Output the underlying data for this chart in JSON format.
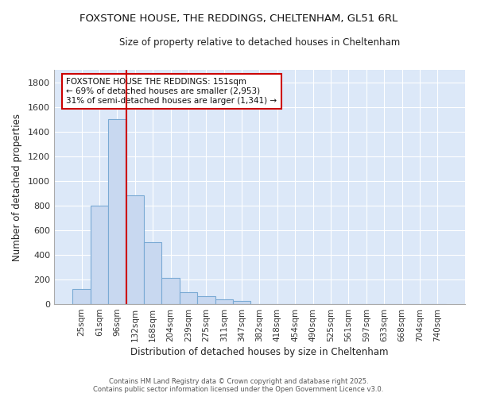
{
  "title": "FOXSTONE HOUSE, THE REDDINGS, CHELTENHAM, GL51 6RL",
  "subtitle": "Size of property relative to detached houses in Cheltenham",
  "xlabel": "Distribution of detached houses by size in Cheltenham",
  "ylabel": "Number of detached properties",
  "bar_color": "#c8d8f0",
  "bar_edge_color": "#7aaad4",
  "plot_bg_color": "#dce8f8",
  "fig_bg_color": "#ffffff",
  "grid_color": "#ffffff",
  "categories": [
    "25sqm",
    "61sqm",
    "96sqm",
    "132sqm",
    "168sqm",
    "204sqm",
    "239sqm",
    "275sqm",
    "311sqm",
    "347sqm",
    "382sqm",
    "418sqm",
    "454sqm",
    "490sqm",
    "525sqm",
    "561sqm",
    "597sqm",
    "633sqm",
    "668sqm",
    "704sqm",
    "740sqm"
  ],
  "values": [
    120,
    800,
    1500,
    880,
    500,
    210,
    100,
    65,
    40,
    25,
    0,
    0,
    0,
    0,
    0,
    0,
    0,
    0,
    0,
    0,
    0
  ],
  "vline_x": 2.5,
  "vline_color": "#cc0000",
  "annotation_line1": "FOXSTONE HOUSE THE REDDINGS: 151sqm",
  "annotation_line2": "← 69% of detached houses are smaller (2,953)",
  "annotation_line3": "31% of semi-detached houses are larger (1,341) →",
  "annotation_box_edge": "#cc0000",
  "ylim": [
    0,
    1900
  ],
  "yticks": [
    0,
    200,
    400,
    600,
    800,
    1000,
    1200,
    1400,
    1600,
    1800
  ],
  "footer_line1": "Contains HM Land Registry data © Crown copyright and database right 2025.",
  "footer_line2": "Contains public sector information licensed under the Open Government Licence v3.0.",
  "figsize": [
    6.0,
    5.0
  ],
  "dpi": 100
}
